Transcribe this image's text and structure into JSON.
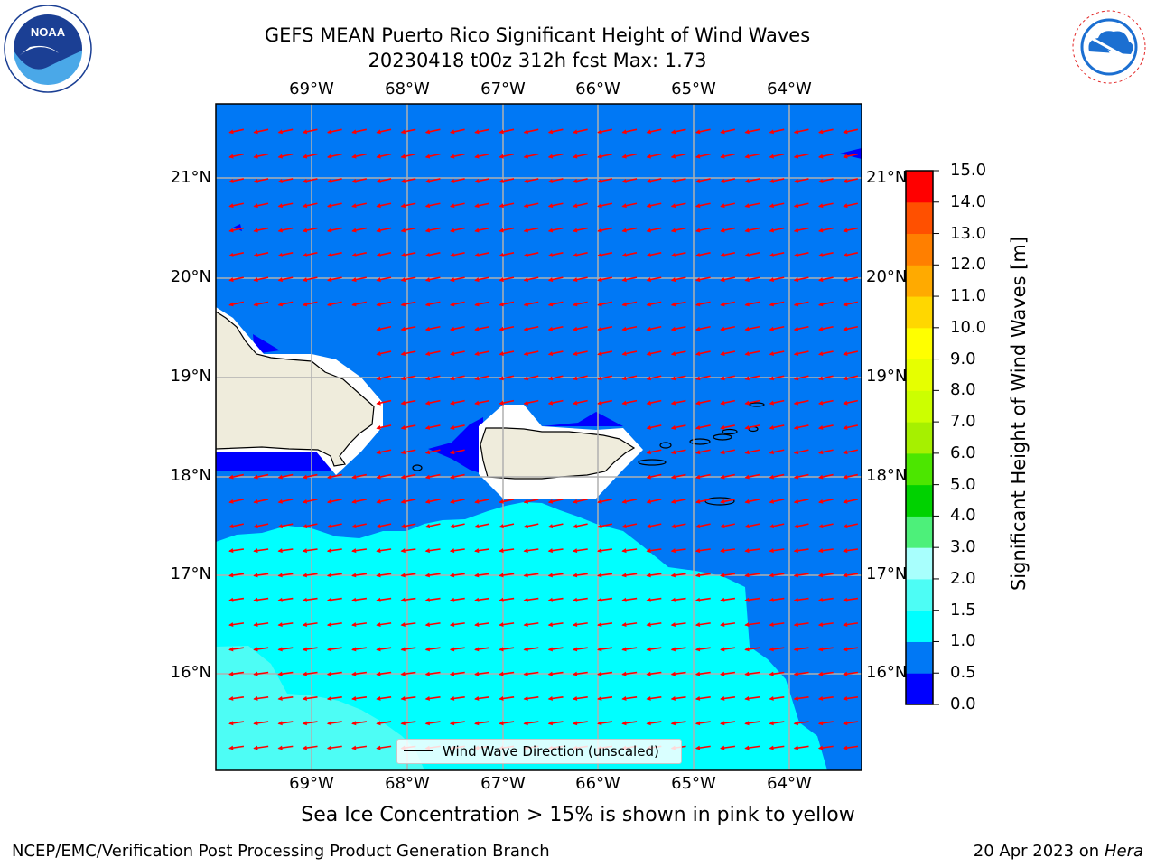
{
  "title": {
    "line1": "GEFS MEAN Puerto Rico Significant Height of Wind Waves",
    "line2": "20230418 t00z 312h fcst   Max: 1.73"
  },
  "map": {
    "lon_labels": [
      "69°W",
      "68°W",
      "67°W",
      "66°W",
      "65°W",
      "64°W"
    ],
    "lat_labels": [
      "21°N",
      "20°N",
      "19°N",
      "18°N",
      "17°N",
      "16°N"
    ],
    "extent": {
      "lon": [
        -70.0,
        -63.25
      ],
      "lat": [
        15.0,
        21.75
      ]
    },
    "grid": true,
    "regions": [
      "Hispaniola",
      "Puerto Rico",
      "Virgin Islands"
    ]
  },
  "colorbar": {
    "label": "Significant Height of Wind Waves [m]",
    "ticks": [
      "0.0",
      "0.5",
      "1.0",
      "1.5",
      "2.0",
      "3.0",
      "4.0",
      "5.0",
      "6.0",
      "7.0",
      "8.0",
      "9.0",
      "10.0",
      "11.0",
      "12.0",
      "13.0",
      "14.0",
      "15.0"
    ],
    "colors": [
      "#0000ff",
      "#0078f5",
      "#00ffff",
      "#4dfdf5",
      "#a8fffd",
      "#4df07a",
      "#00d200",
      "#4ce600",
      "#a6f000",
      "#ccff00",
      "#e6ff00",
      "#ffff00",
      "#ffd700",
      "#ffaa00",
      "#ff7f00",
      "#ff5000",
      "#ff0000"
    ]
  },
  "legend": {
    "label": "Wind Wave Direction (unscaled)"
  },
  "ice_note": "Sea Ice Concentration > 15% is shown in pink to yellow",
  "footer": {
    "left": "NCEP/EMC/Verification Post Processing Product Generation Branch",
    "date": "20 Apr 2023 on ",
    "machine": "Hera"
  },
  "logos": {
    "left": "NOAA",
    "right": "NATIONAL WEATHER SERVICE"
  },
  "arrow_color": "#ff0000"
}
